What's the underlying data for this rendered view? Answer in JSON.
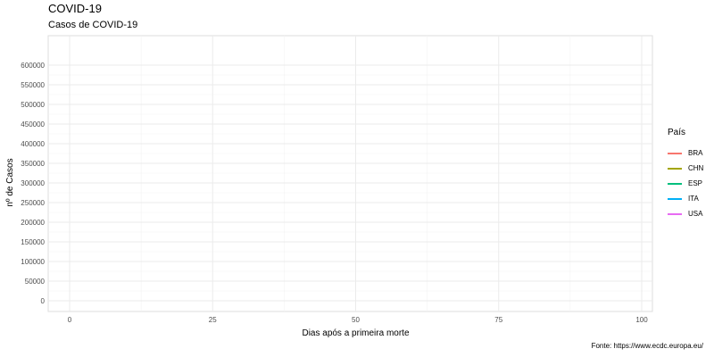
{
  "title": "COVID-19",
  "subtitle": "Casos de COVID-19",
  "caption": "Fonte: https://www.ecdc.europa.eu/",
  "chart_data": {
    "type": "line",
    "title": "COVID-19",
    "subtitle": "Casos de COVID-19",
    "xlabel": "Dias após a primeira morte",
    "ylabel": "nº de Casos",
    "xlim": [
      0,
      100
    ],
    "ylim": [
      0,
      600000
    ],
    "x_ticks": [
      0,
      25,
      50,
      75,
      100
    ],
    "x_tick_labels": [
      "0",
      "25",
      "50",
      "75",
      "100"
    ],
    "y_ticks": [
      0,
      50000,
      100000,
      150000,
      200000,
      250000,
      300000,
      350000,
      400000,
      450000,
      500000,
      550000,
      600000
    ],
    "y_tick_labels": [
      "0",
      "50000",
      "100000",
      "150000",
      "200000",
      "250000",
      "300000",
      "350000",
      "400000",
      "450000",
      "500000",
      "550000",
      "600000"
    ],
    "grid": true,
    "legend_title": "País",
    "legend_position": "right",
    "series": [
      {
        "name": "BRA",
        "color": "#F8766D",
        "values": []
      },
      {
        "name": "CHN",
        "color": "#A3A500",
        "values": []
      },
      {
        "name": "ESP",
        "color": "#00BF7D",
        "values": []
      },
      {
        "name": "ITA",
        "color": "#00B0F6",
        "values": []
      },
      {
        "name": "USA",
        "color": "#E76BF3",
        "values": []
      }
    ]
  }
}
